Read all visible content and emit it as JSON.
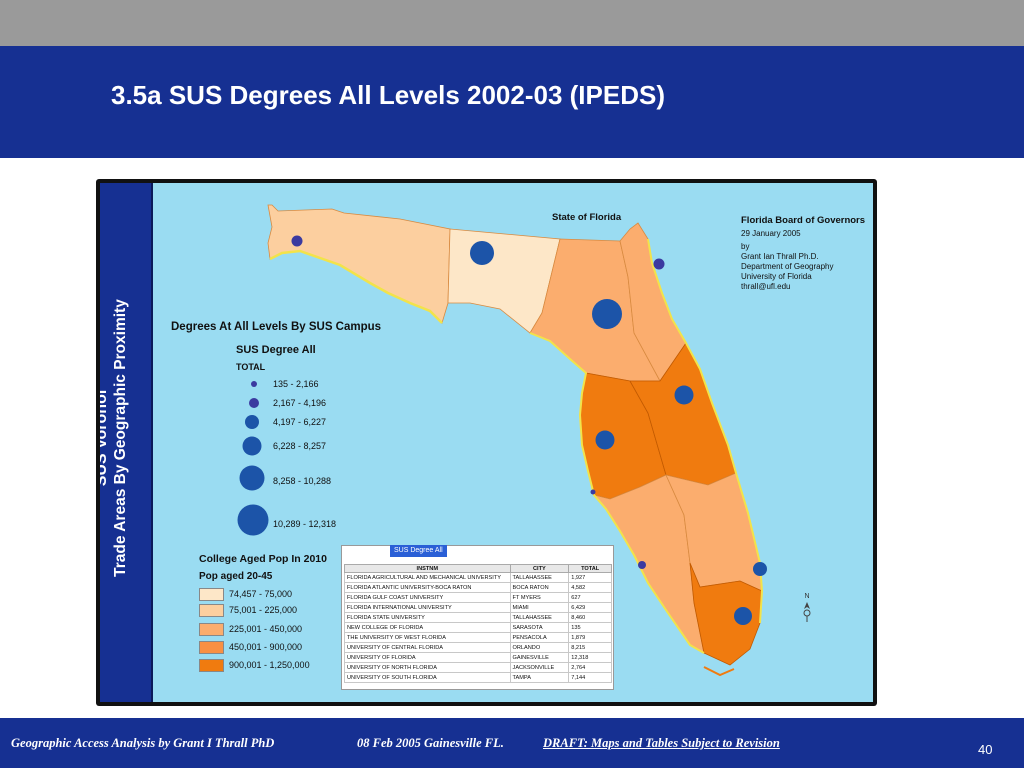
{
  "slide": {
    "title": "3.5a SUS Degrees All Levels 2002-03 (IPEDS)",
    "page_number": "40",
    "colors": {
      "title_bar": "#163092",
      "top_strip": "#9a9a9a",
      "water": "#9adcf2"
    }
  },
  "footer": {
    "author": "Geographic Access Analysis by Grant I Thrall PhD",
    "date_place": "08 Feb 2005  Gainesville FL.",
    "draft": "DRAFT:  Maps and Tables Subject to Revision"
  },
  "map": {
    "side_title_line1": "SUS Voronoi",
    "side_title_line2": "Trade Areas By Geographic Proximity",
    "state_label": "State of Florida",
    "credits": {
      "org": "Florida Board of Governors",
      "date": "29 January 2005",
      "by": "by",
      "name": "Grant Ian Thrall Ph.D.",
      "dept": "Department of Geography",
      "univ": "University of Florida",
      "email": "thrall@ufl.edu"
    },
    "north_label": "N",
    "degrees_legend": {
      "heading": "Degrees At All Levels By SUS Campus",
      "subtitle": "SUS Degree All",
      "field": "TOTAL",
      "classes": [
        {
          "label": "135 - 2,166",
          "color": "#3b3aa0"
        },
        {
          "label": "2,167 - 4,196",
          "color": "#3b3aa0"
        },
        {
          "label": "4,197 - 6,227",
          "color": "#1c54a8"
        },
        {
          "label": "6,228 - 8,257",
          "color": "#1c54a8"
        },
        {
          "label": "8,258 - 10,288",
          "color": "#1c54a8"
        },
        {
          "label": "10,289 - 12,318",
          "color": "#1c54a8"
        }
      ]
    },
    "pop_legend": {
      "title": "College Aged Pop In 2010",
      "subtitle": "Pop aged 20-45",
      "classes": [
        {
          "label": "74,457 - 75,000",
          "color": "#fde7c8"
        },
        {
          "label": "75,001 - 225,000",
          "color": "#fccf9f"
        },
        {
          "label": "225,001 - 450,000",
          "color": "#fbad6e"
        },
        {
          "label": "450,001 - 900,000",
          "color": "#f99043"
        },
        {
          "label": "900,001 - 1,250,000",
          "color": "#f07b0f"
        }
      ]
    },
    "table": {
      "tab_label": "SUS Degree All",
      "headers": [
        "INSTNM",
        "CITY",
        "TOTAL"
      ],
      "rows": [
        [
          "FLORIDA AGRICULTURAL AND MECHANICAL UNIVERSITY",
          "TALLAHASSEE",
          "1,927"
        ],
        [
          "FLORIDA ATLANTIC UNIVERSITY-BOCA RATON",
          "BOCA RATON",
          "4,582"
        ],
        [
          "FLORIDA GULF COAST UNIVERSITY",
          "FT MYERS",
          "627"
        ],
        [
          "FLORIDA INTERNATIONAL UNIVERSITY",
          "MIAMI",
          "6,429"
        ],
        [
          "FLORIDA STATE UNIVERSITY",
          "TALLAHASSEE",
          "8,460"
        ],
        [
          "NEW COLLEGE OF FLORIDA",
          "SARASOTA",
          "135"
        ],
        [
          "THE UNIVERSITY OF WEST FLORIDA",
          "PENSACOLA",
          "1,879"
        ],
        [
          "UNIVERSITY OF CENTRAL FLORIDA",
          "ORLANDO",
          "8,215"
        ],
        [
          "UNIVERSITY OF FLORIDA",
          "GAINESVILLE",
          "12,318"
        ],
        [
          "UNIVERSITY OF NORTH FLORIDA",
          "JACKSONVILLE",
          "2,764"
        ],
        [
          "UNIVERSITY OF SOUTH FLORIDA",
          "TAMPA",
          "7,144"
        ]
      ]
    }
  }
}
